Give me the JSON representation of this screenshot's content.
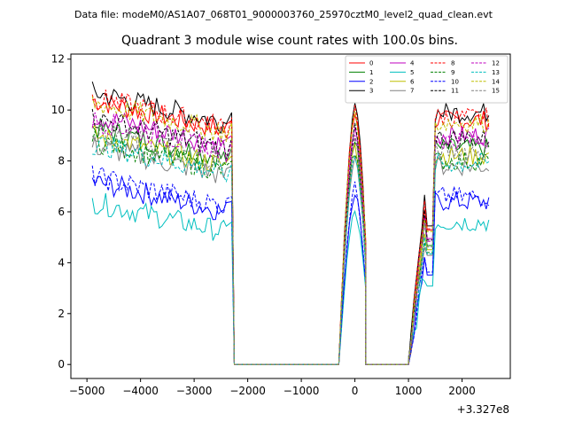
{
  "chart_data": {
    "type": "line",
    "suptitle": "Data file: modeM0/AS1A07_068T01_9000003760_25970cztM0_level2_quad_clean.evt",
    "title": "Quadrant 3 module wise count rates with 100.0s bins.",
    "xlabel": "",
    "ylabel": "",
    "x_offset_label": "+3.327e8",
    "xlim": [
      -5300,
      2900
    ],
    "ylim": [
      -0.55,
      12.2
    ],
    "xticks": [
      -5000,
      -4000,
      -3000,
      -2000,
      -1000,
      0,
      1000,
      2000
    ],
    "xtick_labels": [
      "−5000",
      "−4000",
      "−3000",
      "−2000",
      "−1000",
      "0",
      "1000",
      "2000"
    ],
    "yticks": [
      0,
      2,
      4,
      6,
      8,
      10,
      12
    ],
    "ytick_labels": [
      "0",
      "2",
      "4",
      "6",
      "8",
      "10",
      "12"
    ],
    "segments": [
      {
        "x_start": -4900,
        "x_end": -2400,
        "shape": "active"
      },
      {
        "x_start": -2300,
        "x_end": -2200,
        "shape": "fall"
      },
      {
        "x_start": -2200,
        "x_end": -300,
        "shape": "zero"
      },
      {
        "x_start": -300,
        "x_end": 200,
        "shape": "peak"
      },
      {
        "x_start": 200,
        "x_end": 1000,
        "shape": "zero"
      },
      {
        "x_start": 1000,
        "x_end": 2500,
        "shape": "recover"
      }
    ],
    "series": [
      {
        "name": "0",
        "color": "#ff0000",
        "dash": "solid",
        "base": 9.6
      },
      {
        "name": "1",
        "color": "#008000",
        "dash": "solid",
        "base": 8.5
      },
      {
        "name": "2",
        "color": "#0000ff",
        "dash": "solid",
        "base": 6.4
      },
      {
        "name": "3",
        "color": "#000000",
        "dash": "solid",
        "base": 9.9
      },
      {
        "name": "4",
        "color": "#bf00bf",
        "dash": "solid",
        "base": 9.0
      },
      {
        "name": "5",
        "color": "#00bfbf",
        "dash": "solid",
        "base": 5.6
      },
      {
        "name": "6",
        "color": "#bfbf00",
        "dash": "solid",
        "base": 8.2
      },
      {
        "name": "7",
        "color": "#808080",
        "dash": "solid",
        "base": 7.8
      },
      {
        "name": "8",
        "color": "#ff0000",
        "dash": "dashed",
        "base": 9.7
      },
      {
        "name": "9",
        "color": "#008000",
        "dash": "dashed",
        "base": 8.0
      },
      {
        "name": "10",
        "color": "#0000ff",
        "dash": "dashed",
        "base": 6.6
      },
      {
        "name": "11",
        "color": "#000000",
        "dash": "dashed",
        "base": 8.9
      },
      {
        "name": "12",
        "color": "#bf00bf",
        "dash": "dashed",
        "base": 8.8
      },
      {
        "name": "13",
        "color": "#00bfbf",
        "dash": "dashed",
        "base": 7.9
      },
      {
        "name": "14",
        "color": "#bfbf00",
        "dash": "dashed",
        "base": 9.5
      },
      {
        "name": "15",
        "color": "#808080",
        "dash": "dashed",
        "base": 8.4
      }
    ],
    "legend_position": "top-right",
    "legend_columns": 4
  }
}
